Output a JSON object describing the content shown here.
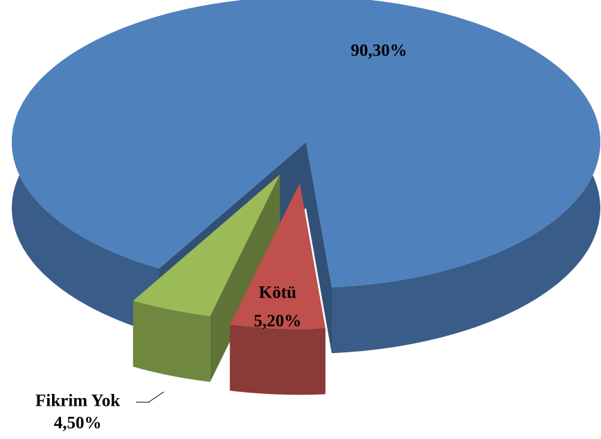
{
  "chart_data": {
    "type": "pie3d",
    "categories": [
      null,
      "Kötü",
      "Fikrim Yok"
    ],
    "values": [
      90.3,
      5.2,
      4.5
    ],
    "value_labels": [
      "90,30%",
      "5,20%",
      "4,50%"
    ],
    "colors": [
      "#4f81bd",
      "#c0504d",
      "#9bbb59"
    ]
  }
}
